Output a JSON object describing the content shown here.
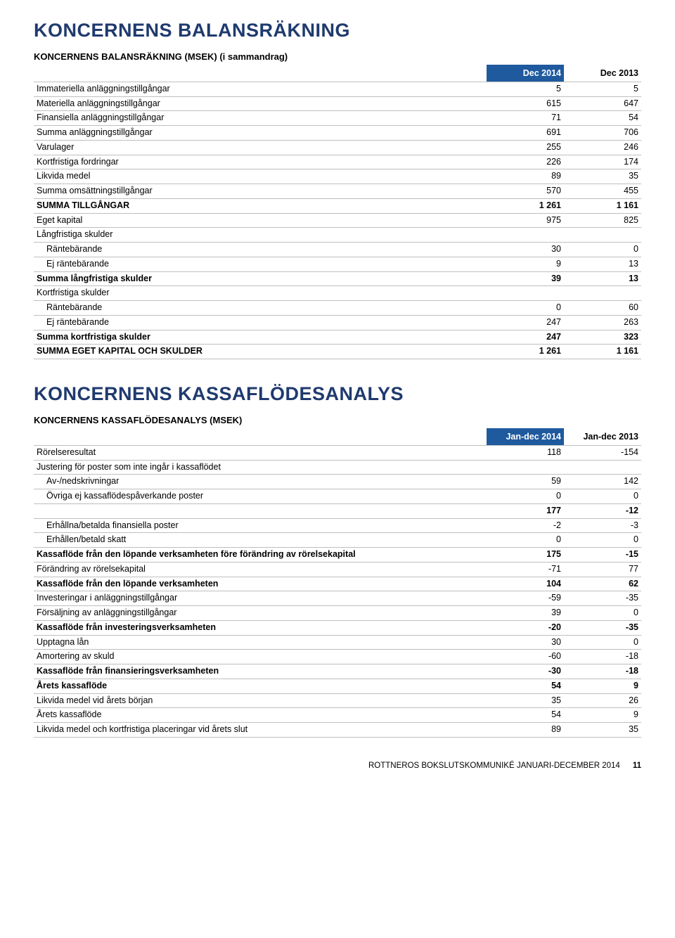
{
  "colors": {
    "heading": "#1f3a6e",
    "accent_bg": "#1f5a9e",
    "accent_fg": "#ffffff",
    "border": "#bfbfbf",
    "text": "#000000",
    "background": "#ffffff"
  },
  "balance": {
    "title": "KONCERNENS BALANSRÄKNING",
    "subtitle": "KONCERNENS BALANSRÄKNING (MSEK) (i sammandrag)",
    "col1": "Dec 2014",
    "col2": "Dec 2013",
    "rows": [
      {
        "label": "Immateriella anläggningstillgångar",
        "v1": "5",
        "v2": "5",
        "bold": false,
        "indent": false
      },
      {
        "label": "Materiella anläggningstillgångar",
        "v1": "615",
        "v2": "647",
        "bold": false,
        "indent": false
      },
      {
        "label": "Finansiella anläggningstillgångar",
        "v1": "71",
        "v2": "54",
        "bold": false,
        "indent": false
      },
      {
        "label": "Summa anläggningstillgångar",
        "v1": "691",
        "v2": "706",
        "bold": false,
        "indent": false
      },
      {
        "label": "Varulager",
        "v1": "255",
        "v2": "246",
        "bold": false,
        "indent": false
      },
      {
        "label": "Kortfristiga fordringar",
        "v1": "226",
        "v2": "174",
        "bold": false,
        "indent": false
      },
      {
        "label": "Likvida medel",
        "v1": "89",
        "v2": "35",
        "bold": false,
        "indent": false
      },
      {
        "label": "Summa omsättningstillgångar",
        "v1": "570",
        "v2": "455",
        "bold": false,
        "indent": false
      },
      {
        "label": "SUMMA TILLGÅNGAR",
        "v1": "1 261",
        "v2": "1 161",
        "bold": true,
        "indent": false
      },
      {
        "label": "Eget kapital",
        "v1": "975",
        "v2": "825",
        "bold": false,
        "indent": false
      },
      {
        "label": "Långfristiga skulder",
        "v1": "",
        "v2": "",
        "bold": false,
        "indent": false
      },
      {
        "label": "Räntebärande",
        "v1": "30",
        "v2": "0",
        "bold": false,
        "indent": true
      },
      {
        "label": "Ej räntebärande",
        "v1": "9",
        "v2": "13",
        "bold": false,
        "indent": true
      },
      {
        "label": "Summa långfristiga skulder",
        "v1": "39",
        "v2": "13",
        "bold": true,
        "indent": false
      },
      {
        "label": "Kortfristiga skulder",
        "v1": "",
        "v2": "",
        "bold": false,
        "indent": false
      },
      {
        "label": "Räntebärande",
        "v1": "0",
        "v2": "60",
        "bold": false,
        "indent": true
      },
      {
        "label": "Ej räntebärande",
        "v1": "247",
        "v2": "263",
        "bold": false,
        "indent": true
      },
      {
        "label": "Summa kortfristiga skulder",
        "v1": "247",
        "v2": "323",
        "bold": true,
        "indent": false
      },
      {
        "label": "SUMMA EGET KAPITAL OCH SKULDER",
        "v1": "1 261",
        "v2": "1 161",
        "bold": true,
        "indent": false
      }
    ]
  },
  "cashflow": {
    "title": "KONCERNENS KASSAFLÖDESANALYS",
    "subtitle": "KONCERNENS KASSAFLÖDESANALYS (MSEK)",
    "col1": "Jan-dec 2014",
    "col2": "Jan-dec 2013",
    "rows": [
      {
        "label": "Rörelseresultat",
        "v1": "118",
        "v2": "-154",
        "bold": false,
        "indent": false
      },
      {
        "label": "Justering för poster som inte ingår i kassaflödet",
        "v1": "",
        "v2": "",
        "bold": false,
        "indent": false
      },
      {
        "label": "Av-/nedskrivningar",
        "v1": "59",
        "v2": "142",
        "bold": false,
        "indent": true
      },
      {
        "label": "Övriga ej kassaflödespåverkande poster",
        "v1": "0",
        "v2": "0",
        "bold": false,
        "indent": true
      },
      {
        "label": "",
        "v1": "177",
        "v2": "-12",
        "bold": true,
        "indent": false
      },
      {
        "label": "Erhållna/betalda finansiella poster",
        "v1": "-2",
        "v2": "-3",
        "bold": false,
        "indent": true
      },
      {
        "label": "Erhållen/betald skatt",
        "v1": "0",
        "v2": "0",
        "bold": false,
        "indent": true
      },
      {
        "label": "Kassaflöde från den löpande verksamheten före förändring av rörelsekapital",
        "v1": "175",
        "v2": "-15",
        "bold": true,
        "indent": false
      },
      {
        "label": "Förändring av rörelsekapital",
        "v1": "-71",
        "v2": "77",
        "bold": false,
        "indent": false
      },
      {
        "label": "Kassaflöde från den löpande verksamheten",
        "v1": "104",
        "v2": "62",
        "bold": true,
        "indent": false
      },
      {
        "label": "Investeringar i anläggningstillgångar",
        "v1": "-59",
        "v2": "-35",
        "bold": false,
        "indent": false
      },
      {
        "label": "Försäljning av anläggningstillgångar",
        "v1": "39",
        "v2": "0",
        "bold": false,
        "indent": false
      },
      {
        "label": "Kassaflöde från investeringsverksamheten",
        "v1": "-20",
        "v2": "-35",
        "bold": true,
        "indent": false
      },
      {
        "label": "Upptagna lån",
        "v1": "30",
        "v2": "0",
        "bold": false,
        "indent": false
      },
      {
        "label": "Amortering av skuld",
        "v1": "-60",
        "v2": "-18",
        "bold": false,
        "indent": false
      },
      {
        "label": "Kassaflöde från finansieringsverksamheten",
        "v1": "-30",
        "v2": "-18",
        "bold": true,
        "indent": false
      },
      {
        "label": "Årets kassaflöde",
        "v1": "54",
        "v2": "9",
        "bold": true,
        "indent": false
      },
      {
        "label": "Likvida medel vid årets början",
        "v1": "35",
        "v2": "26",
        "bold": false,
        "indent": false
      },
      {
        "label": "Årets kassaflöde",
        "v1": "54",
        "v2": "9",
        "bold": false,
        "indent": false
      },
      {
        "label": "Likvida medel och kortfristiga placeringar vid årets slut",
        "v1": "89",
        "v2": "35",
        "bold": false,
        "indent": false
      }
    ]
  },
  "footer": {
    "text": "ROTTNEROS BOKSLUTSKOMMUNIKÉ JANUARI-DECEMBER 2014",
    "page": "11"
  }
}
